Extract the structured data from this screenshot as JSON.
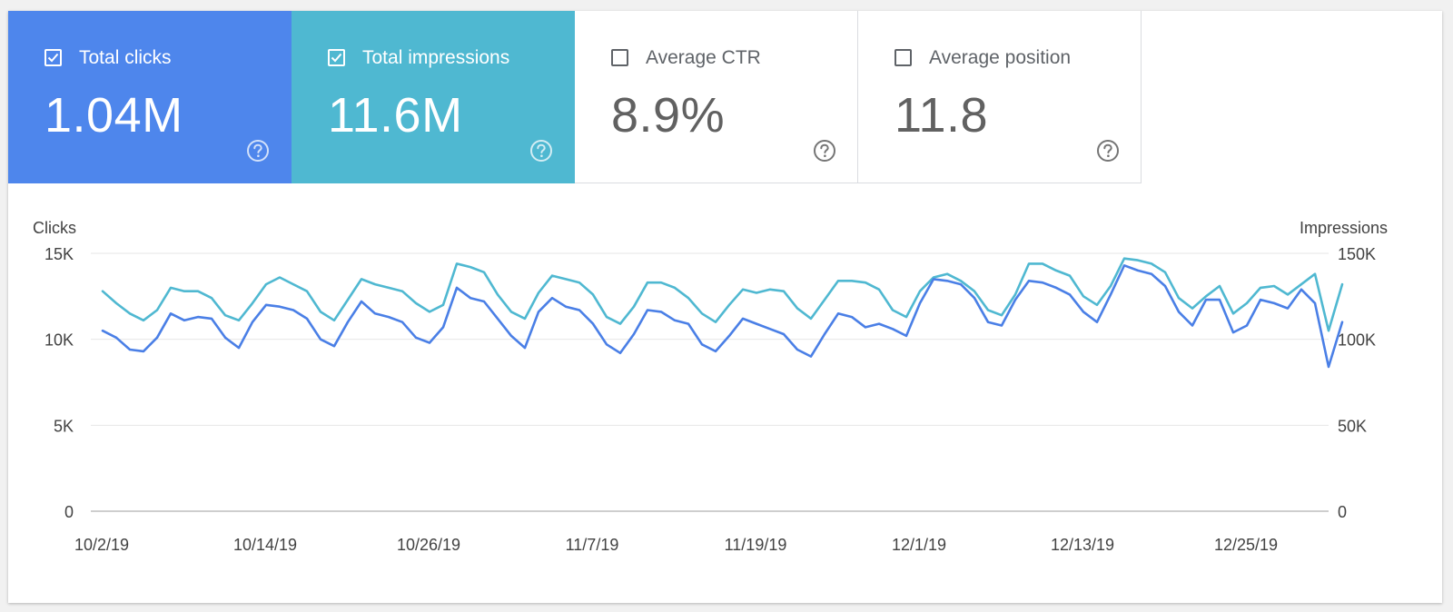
{
  "metrics": [
    {
      "label": "Total clicks",
      "value": "1.04M",
      "checked": true,
      "color": "#4e86ec"
    },
    {
      "label": "Total impressions",
      "value": "11.6M",
      "checked": true,
      "color": "#4fb8d1"
    },
    {
      "label": "Average CTR",
      "value": "8.9%",
      "checked": false,
      "color": "#ffffff"
    },
    {
      "label": "Average position",
      "value": "11.8",
      "checked": false,
      "color": "#ffffff"
    }
  ],
  "icons": {
    "checkbox": "checkbox-icon",
    "help": "help-circle-icon"
  },
  "chart_data": {
    "type": "line",
    "left_axis_title": "Clicks",
    "right_axis_title": "Impressions",
    "left_ticks": [
      "0",
      "5K",
      "10K",
      "15K"
    ],
    "right_ticks": [
      "0",
      "50K",
      "100K",
      "150K"
    ],
    "left_ylim": [
      0,
      15000
    ],
    "right_ylim": [
      0,
      150000
    ],
    "x_ticks": [
      "10/2/19",
      "10/14/19",
      "10/26/19",
      "11/7/19",
      "11/19/19",
      "12/1/19",
      "12/13/19",
      "12/25/19"
    ],
    "x_start": "10/2/19",
    "grid": true,
    "series": [
      {
        "name": "Clicks",
        "axis": "left",
        "color": "#4a7fe6",
        "values": [
          10500,
          10100,
          9400,
          9300,
          10100,
          11500,
          11100,
          11300,
          11200,
          10100,
          9500,
          11000,
          12000,
          11900,
          11700,
          11200,
          10000,
          9600,
          11000,
          12200,
          11500,
          11300,
          11000,
          10100,
          9800,
          10700,
          13000,
          12400,
          12200,
          11200,
          10200,
          9500,
          11600,
          12400,
          11900,
          11700,
          10900,
          9700,
          9200,
          10300,
          11700,
          11600,
          11100,
          10900,
          9700,
          9300,
          10200,
          11200,
          10900,
          10600,
          10300,
          9400,
          9000,
          10300,
          11500,
          11300,
          10700,
          10900,
          10600,
          10200,
          12100,
          13500,
          13400,
          13200,
          12400,
          11000,
          10800,
          12300,
          13400,
          13300,
          13000,
          12600,
          11600,
          11000,
          12600,
          14300,
          14000,
          13800,
          13100,
          11600,
          10800,
          12300,
          12300,
          10400,
          10800,
          12300,
          12100,
          11800,
          12900,
          12100,
          8400,
          11000
        ]
      },
      {
        "name": "Impressions",
        "axis": "right",
        "color": "#4fb8d1",
        "values": [
          128000,
          121000,
          115000,
          111000,
          117000,
          130000,
          128000,
          128000,
          124000,
          114000,
          111000,
          121000,
          132000,
          136000,
          132000,
          128000,
          116000,
          111000,
          123000,
          135000,
          132000,
          130000,
          128000,
          121000,
          116000,
          120000,
          144000,
          142000,
          139000,
          126000,
          116000,
          112000,
          127000,
          137000,
          135000,
          133000,
          126000,
          113000,
          109000,
          119000,
          133000,
          133000,
          130000,
          124000,
          115000,
          110000,
          120000,
          129000,
          127000,
          129000,
          128000,
          118000,
          112000,
          123000,
          134000,
          134000,
          133000,
          129000,
          117000,
          113000,
          128000,
          136000,
          138000,
          134000,
          128000,
          117000,
          114000,
          126000,
          144000,
          144000,
          140000,
          137000,
          125000,
          120000,
          131000,
          147000,
          146000,
          144000,
          139000,
          124000,
          118000,
          125000,
          131000,
          115000,
          121000,
          130000,
          131000,
          126000,
          132000,
          138000,
          105000,
          132000
        ]
      }
    ]
  }
}
